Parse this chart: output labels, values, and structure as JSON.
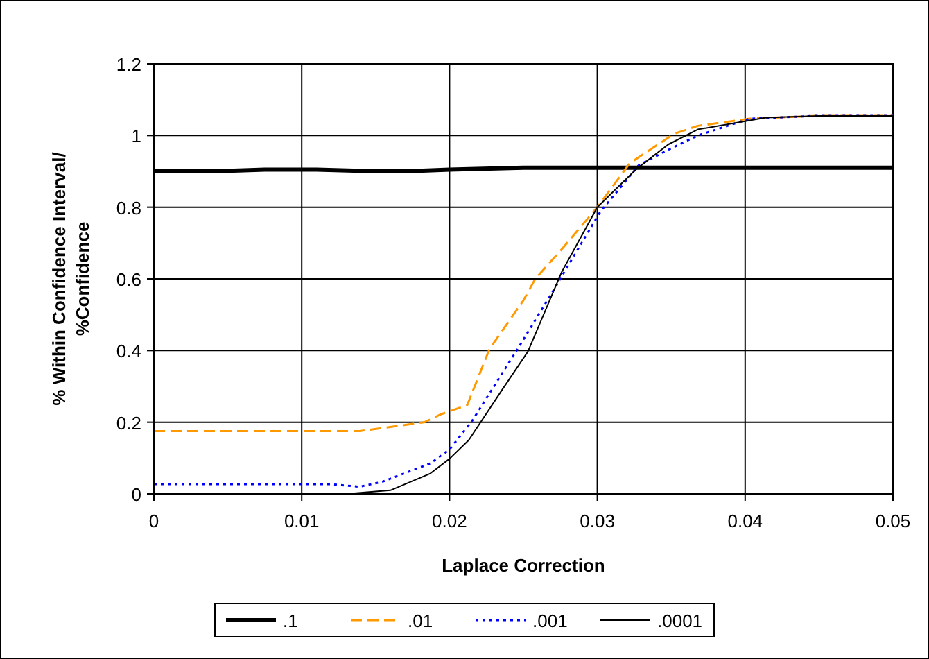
{
  "chart_data": {
    "type": "line",
    "xlabel": "Laplace Correction",
    "ylabel": "% Within Confidence Interval/\n%Confidence",
    "xlim": [
      0,
      0.05
    ],
    "xticks": [
      0,
      0.01,
      0.02,
      0.03,
      0.04,
      0.05
    ],
    "ylim": [
      0,
      1.2
    ],
    "yticks": [
      0,
      0.2,
      0.4,
      0.6,
      0.8,
      1,
      1.2
    ],
    "grid": true,
    "legend": "bottom",
    "series": [
      {
        "name": ".1",
        "color": "#000000",
        "line_style": "solid",
        "x": [
          0,
          0.004,
          0.0075,
          0.011,
          0.0151,
          0.017,
          0.02,
          0.025,
          0.03,
          0.04,
          0.05
        ],
        "values": [
          0.9,
          0.9,
          0.905,
          0.905,
          0.9,
          0.9,
          0.905,
          0.91,
          0.91,
          0.91,
          0.91
        ]
      },
      {
        "name": ".01",
        "color": "#ff9900",
        "line_style": "dashed",
        "x": [
          0,
          0.0139,
          0.0183,
          0.0194,
          0.0212,
          0.0227,
          0.025,
          0.0258,
          0.0276,
          0.03,
          0.0322,
          0.0352,
          0.0368,
          0.0403,
          0.0449,
          0.05
        ],
        "values": [
          0.175,
          0.175,
          0.2,
          0.222,
          0.248,
          0.404,
          0.54,
          0.6,
          0.683,
          0.8,
          0.923,
          1.005,
          1.027,
          1.047,
          1.055,
          1.055
        ]
      },
      {
        "name": ".001",
        "color": "#0000ff",
        "line_style": "dotted",
        "x": [
          0,
          0.012,
          0.0139,
          0.0154,
          0.0187,
          0.02,
          0.0215,
          0.0246,
          0.0269,
          0.0286,
          0.0302,
          0.0328,
          0.0348,
          0.0368,
          0.0403,
          0.0449,
          0.05
        ],
        "values": [
          0.027,
          0.027,
          0.02,
          0.033,
          0.085,
          0.124,
          0.202,
          0.404,
          0.559,
          0.677,
          0.787,
          0.917,
          0.96,
          1.0,
          1.047,
          1.055,
          1.055
        ]
      },
      {
        "name": ".0001",
        "color": "#000000",
        "line_style": "solid",
        "x": [
          0,
          0.013,
          0.016,
          0.0187,
          0.02,
          0.0213,
          0.0236,
          0.0253,
          0.0276,
          0.03,
          0.0326,
          0.0348,
          0.0368,
          0.0414,
          0.045,
          0.05
        ],
        "values": [
          0,
          0,
          0.01,
          0.057,
          0.098,
          0.15,
          0.293,
          0.397,
          0.62,
          0.8,
          0.905,
          0.975,
          1.017,
          1.05,
          1.055,
          1.055
        ]
      }
    ]
  }
}
